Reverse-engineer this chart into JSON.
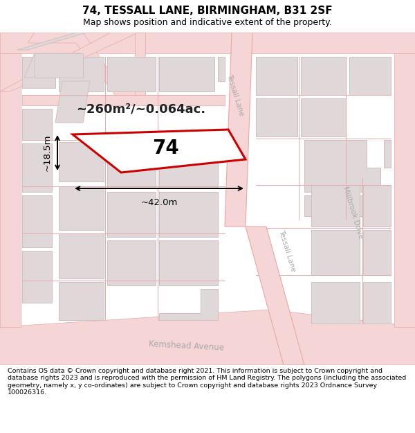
{
  "title": "74, TESSALL LANE, BIRMINGHAM, B31 2SF",
  "subtitle": "Map shows position and indicative extent of the property.",
  "footer": "Contains OS data © Crown copyright and database right 2021. This information is subject to Crown copyright and database rights 2023 and is reproduced with the permission of HM Land Registry. The polygons (including the associated geometry, namely x, y co-ordinates) are subject to Crown copyright and database rights 2023 Ordnance Survey 100026316.",
  "map_bg": "#ffffff",
  "road_fill": "#f5d5d5",
  "road_line": "#e8a8a8",
  "building_fill": "#e0d8d8",
  "building_line": "#d0c0c0",
  "highlight_color": "#cc0000",
  "area_text": "~260m²/~0.064ac.",
  "label_74": "74",
  "dim_width": "~42.0m",
  "dim_height": "~18.5m",
  "title_fontsize": 11,
  "subtitle_fontsize": 9,
  "footer_fontsize": 6.8,
  "street_label_color": "#aaaaaa"
}
